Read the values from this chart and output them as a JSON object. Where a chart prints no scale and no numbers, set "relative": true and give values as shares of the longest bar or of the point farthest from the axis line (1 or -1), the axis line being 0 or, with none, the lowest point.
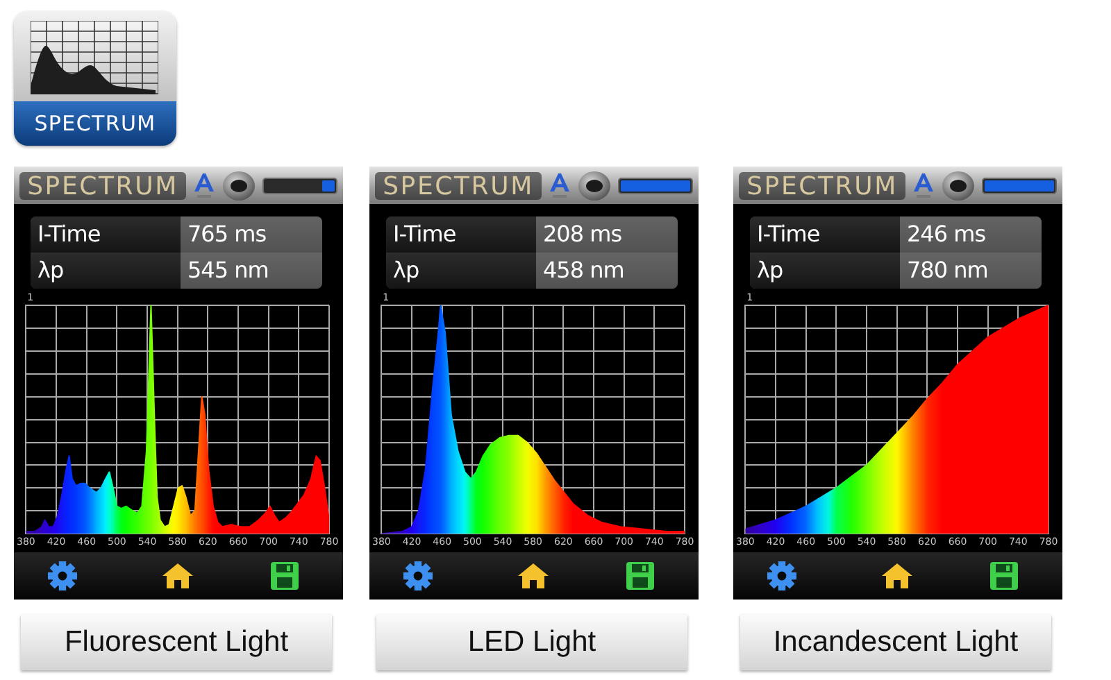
{
  "chart_data": [
    {
      "type": "other",
      "title": "SPECTRUM"
    },
    {
      "type": "area",
      "title": "Fluorescent Light",
      "annotations": [
        "SPECTRUM",
        "I-Time",
        "765 ms",
        "λp",
        "545 nm",
        "1"
      ],
      "relative": true,
      "xlim": [
        380,
        780
      ],
      "xticks": [
        380,
        420,
        460,
        500,
        540,
        580,
        620,
        660,
        700,
        740,
        780
      ],
      "grid": true,
      "x": [
        380,
        392,
        401,
        405,
        410,
        416,
        422,
        428,
        433,
        437,
        441,
        446,
        452,
        458,
        464,
        473,
        479,
        485,
        490,
        495,
        500,
        506,
        512,
        521,
        527,
        533,
        539,
        545,
        550,
        553,
        557,
        563,
        569,
        575,
        581,
        586,
        591,
        597,
        603,
        607,
        612,
        616,
        621,
        627,
        633,
        639,
        651,
        663,
        675,
        687,
        696,
        702,
        708,
        714,
        723,
        729,
        738,
        747,
        756,
        763,
        768,
        774,
        780
      ],
      "values": [
        0.01,
        0.01,
        0.03,
        0.06,
        0.03,
        0.03,
        0.08,
        0.18,
        0.28,
        0.34,
        0.24,
        0.21,
        0.22,
        0.22,
        0.2,
        0.18,
        0.2,
        0.24,
        0.27,
        0.2,
        0.12,
        0.11,
        0.12,
        0.1,
        0.09,
        0.12,
        0.36,
        1,
        0.45,
        0.16,
        0.06,
        0.03,
        0.04,
        0.12,
        0.2,
        0.21,
        0.16,
        0.08,
        0.1,
        0.32,
        0.6,
        0.52,
        0.28,
        0.12,
        0.05,
        0.03,
        0.04,
        0.03,
        0.03,
        0.06,
        0.09,
        0.12,
        0.08,
        0.05,
        0.07,
        0.09,
        0.13,
        0.17,
        0.24,
        0.34,
        0.32,
        0.2,
        0.06
      ],
      "colors": [
        "#3000a0",
        "#3000b8",
        "#3000c8",
        "#2c00d0",
        "#2800d8",
        "#2400e8",
        "#1c08f4",
        "#1018f8",
        "#0820fc",
        "#0428ff",
        "#0030ff",
        "#0038ff",
        "#0048ff",
        "#0058ff",
        "#0078ff",
        "#00b0ff",
        "#00d0ff",
        "#00f0ff",
        "#00ffd0",
        "#00ffa0",
        "#00ff50",
        "#00ff18",
        "#08ff00",
        "#28ff00",
        "#38ff00",
        "#50ff00",
        "#68ff00",
        "#78ff00",
        "#90ff00",
        "#98ff00",
        "#b0ff00",
        "#c8ff00",
        "#e8ff00",
        "#fff800",
        "#ffe800",
        "#ffd000",
        "#ffc000",
        "#ff9800",
        "#ff7800",
        "#ff6400",
        "#ff5000",
        "#ff3c00",
        "#ff2000",
        "#ff0800",
        "#ff0000",
        "#ff0000",
        "#ff0000",
        "#ff0000",
        "#ff0000",
        "#ff0000",
        "#ff0000",
        "#ff0000",
        "#ff0000",
        "#ff0000",
        "#ff0000",
        "#ff0000",
        "#ff0000",
        "#ff0000",
        "#ff0000",
        "#ff0000",
        "#ff0000",
        "#ff0000",
        "#ff0000"
      ]
    },
    {
      "type": "area",
      "title": "LED Light",
      "annotations": [
        "SPECTRUM",
        "I-Time",
        "208 ms",
        "λp",
        "458 nm",
        "1"
      ],
      "relative": true,
      "xlim": [
        380,
        780
      ],
      "xticks": [
        380,
        420,
        460,
        500,
        540,
        580,
        620,
        660,
        700,
        740,
        780
      ],
      "grid": true,
      "x": [
        380,
        408,
        420,
        429,
        438,
        447,
        455,
        458,
        464,
        472,
        481,
        490,
        498,
        505,
        514,
        524,
        536,
        548,
        560,
        572,
        585,
        597,
        609,
        621,
        633,
        652,
        670,
        695,
        725,
        756,
        780
      ],
      "values": [
        0,
        0.01,
        0.03,
        0.1,
        0.28,
        0.62,
        0.88,
        1,
        0.88,
        0.52,
        0.36,
        0.27,
        0.24,
        0.27,
        0.34,
        0.39,
        0.42,
        0.43,
        0.43,
        0.4,
        0.35,
        0.29,
        0.23,
        0.18,
        0.13,
        0.08,
        0.05,
        0.03,
        0.02,
        0.01,
        0.01
      ],
      "colors": [
        "#3000a0",
        "#3000d0",
        "#2000f0",
        "#1418f8",
        "#0428ff",
        "#0040ff",
        "#0050ff",
        "#0058ff",
        "#0078ff",
        "#00b0ff",
        "#00d8ff",
        "#00f8f0",
        "#00ff80",
        "#00ff18",
        "#10ff00",
        "#38ff00",
        "#68ff00",
        "#88ff00",
        "#c0ff00",
        "#f0ff00",
        "#ffe000",
        "#ff9800",
        "#ff5c00",
        "#ff2000",
        "#ff0000",
        "#ff0000",
        "#ff0000",
        "#ff0000",
        "#ff0000",
        "#ff0000",
        "#ff0000"
      ]
    },
    {
      "type": "area",
      "title": "Incandescent Light",
      "annotations": [
        "SPECTRUM",
        "I-Time",
        "246 ms",
        "λp",
        "780 nm",
        "1"
      ],
      "relative": true,
      "xlim": [
        380,
        780
      ],
      "xticks": [
        380,
        420,
        460,
        500,
        540,
        580,
        620,
        660,
        700,
        740,
        780
      ],
      "grid": true,
      "x": [
        380,
        400,
        420,
        440,
        460,
        475,
        490,
        500,
        520,
        540,
        560,
        580,
        600,
        620,
        640,
        660,
        680,
        700,
        720,
        740,
        760,
        780
      ],
      "values": [
        0.02,
        0.04,
        0.06,
        0.09,
        0.12,
        0.15,
        0.18,
        0.2,
        0.25,
        0.3,
        0.37,
        0.44,
        0.51,
        0.59,
        0.66,
        0.74,
        0.8,
        0.86,
        0.9,
        0.94,
        0.97,
        1
      ],
      "colors": [
        "#3000a0",
        "#3000c8",
        "#2000f0",
        "#0030ff",
        "#0068ff",
        "#00c0ff",
        "#00f8e0",
        "#00ff50",
        "#20ff00",
        "#70ff00",
        "#c0ff00",
        "#fff800",
        "#ff8800",
        "#ff2800",
        "#ff0000",
        "#ff0000",
        "#ff0000",
        "#ff0000",
        "#ff0000",
        "#ff0000",
        "#ff0000",
        "#ff0000"
      ]
    }
  ]
}
